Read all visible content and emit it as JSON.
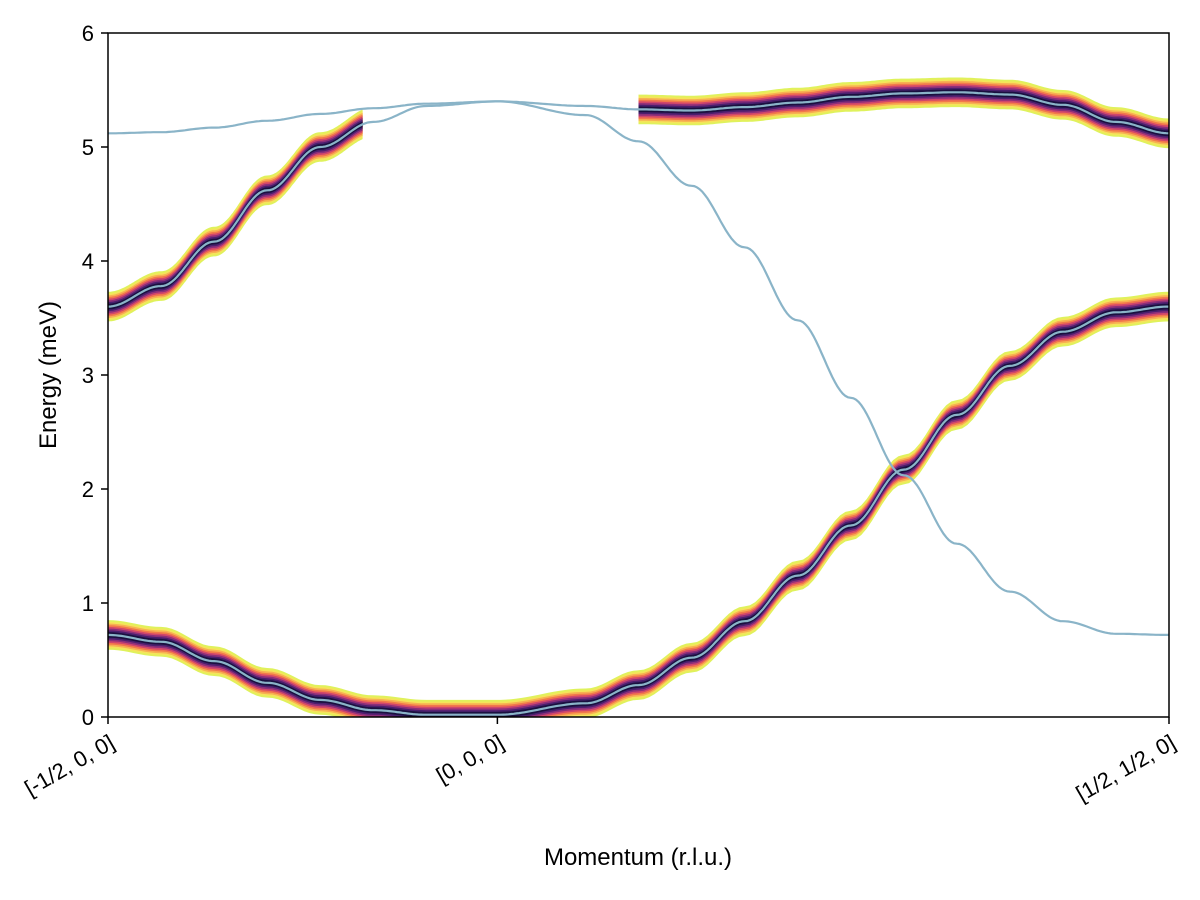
{
  "chart_data": {
    "type": "line",
    "title": "",
    "xlabel": "Momentum (r.l.u.)",
    "ylabel": "Energy (meV)",
    "ylim": [
      0,
      6
    ],
    "x_range": [
      0,
      1
    ],
    "x_ticks": [
      {
        "value": 0.0,
        "label": "[-1/2, 0, 0]"
      },
      {
        "value": 0.367,
        "label": "[0, 0, 0]"
      },
      {
        "value": 1.0,
        "label": "[1/2, 1/2, 0]"
      }
    ],
    "y_ticks": [
      0,
      1,
      2,
      3,
      4,
      5,
      6
    ],
    "grid": false,
    "legend": "none",
    "line_color": "#8ab4c8",
    "intensity_colormap": [
      "#1a1140",
      "#4a1f6e",
      "#8c2f7a",
      "#d1466b",
      "#f2784c",
      "#f7b052",
      "#f4e55a",
      "#dff25c"
    ],
    "series": [
      {
        "x": [
          0.0,
          0.05,
          0.1,
          0.15,
          0.2,
          0.25,
          0.3,
          0.367,
          0.45,
          0.5,
          0.55,
          0.6,
          0.65,
          0.7,
          0.75,
          0.8,
          0.85,
          0.9,
          0.95,
          1.0
        ],
        "values": [
          0.72,
          0.66,
          0.49,
          0.3,
          0.15,
          0.06,
          0.02,
          0.02,
          0.12,
          0.28,
          0.52,
          0.84,
          1.24,
          1.68,
          2.17,
          2.65,
          3.08,
          3.38,
          3.55,
          3.6
        ],
        "intensity_x_range": [
          0.0,
          1.0
        ]
      },
      {
        "x": [
          0.0,
          0.05,
          0.1,
          0.15,
          0.2,
          0.25,
          0.3,
          0.367,
          0.45,
          0.5,
          0.55,
          0.6,
          0.65,
          0.7,
          0.75,
          0.8,
          0.85,
          0.9,
          0.95,
          1.0
        ],
        "values": [
          3.6,
          3.78,
          4.17,
          4.62,
          5.0,
          5.22,
          5.36,
          5.4,
          5.28,
          5.05,
          4.66,
          4.12,
          3.48,
          2.8,
          2.12,
          1.52,
          1.1,
          0.84,
          0.73,
          0.72
        ],
        "intensity_x_range": [
          0.0,
          0.24
        ]
      },
      {
        "x": [
          0.0,
          0.05,
          0.1,
          0.15,
          0.2,
          0.25,
          0.3,
          0.367,
          0.45,
          0.5,
          0.55,
          0.6,
          0.65,
          0.7,
          0.75,
          0.8,
          0.85,
          0.9,
          0.95,
          1.0
        ],
        "values": [
          5.12,
          5.13,
          5.17,
          5.23,
          5.29,
          5.34,
          5.38,
          5.4,
          5.36,
          5.33,
          5.32,
          5.35,
          5.39,
          5.44,
          5.47,
          5.48,
          5.46,
          5.37,
          5.22,
          5.12
        ],
        "intensity_x_range": [
          0.5,
          1.0
        ]
      }
    ]
  }
}
